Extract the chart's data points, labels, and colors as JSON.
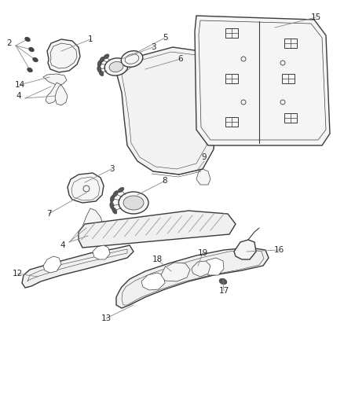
{
  "bg_color": "#ffffff",
  "line_color": "#3a3a3a",
  "label_color": "#2a2a2a",
  "leader_color": "#888888",
  "fill_color": "#f5f5f5",
  "figsize": [
    4.38,
    5.33
  ],
  "dpi": 100,
  "lw_main": 1.0,
  "lw_inner": 0.5,
  "label_fs": 7.5
}
